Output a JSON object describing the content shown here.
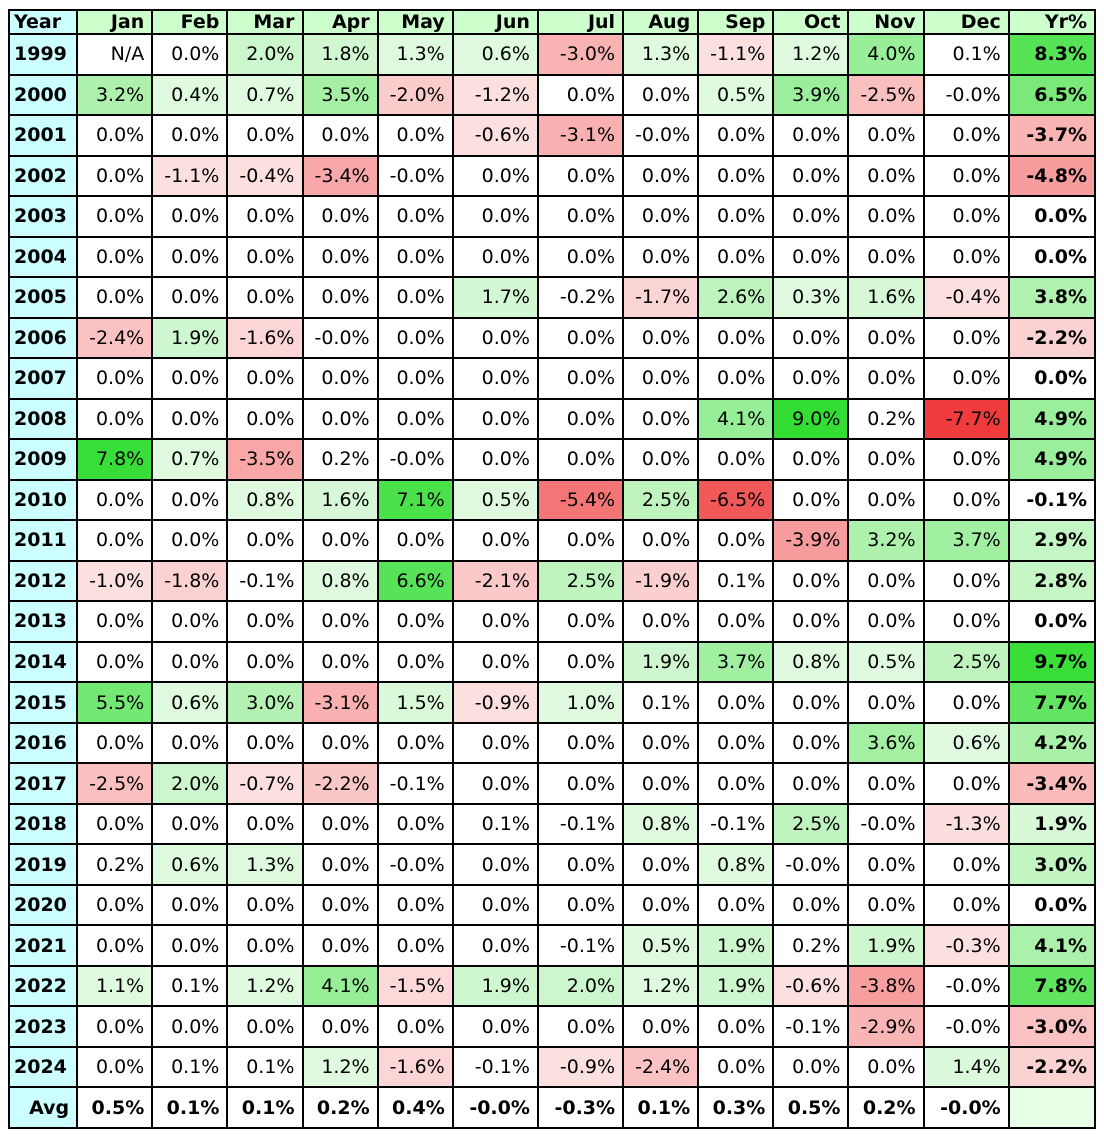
{
  "table": {
    "columns": [
      "Year",
      "Jan",
      "Feb",
      "Mar",
      "Apr",
      "May",
      "Jun",
      "Jul",
      "Aug",
      "Sep",
      "Oct",
      "Nov",
      "Dec",
      "Yr%"
    ],
    "rows": [
      {
        "year": "1999",
        "values": [
          "N/A",
          "0.0%",
          "2.0%",
          "1.8%",
          "1.3%",
          "0.6%",
          "-3.0%",
          "1.3%",
          "-1.1%",
          "1.2%",
          "4.0%",
          "0.1%",
          "8.3%"
        ]
      },
      {
        "year": "2000",
        "values": [
          "3.2%",
          "0.4%",
          "0.7%",
          "3.5%",
          "-2.0%",
          "-1.2%",
          "0.0%",
          "0.0%",
          "0.5%",
          "3.9%",
          "-2.5%",
          "-0.0%",
          "6.5%"
        ]
      },
      {
        "year": "2001",
        "values": [
          "0.0%",
          "0.0%",
          "0.0%",
          "0.0%",
          "0.0%",
          "-0.6%",
          "-3.1%",
          "-0.0%",
          "0.0%",
          "0.0%",
          "0.0%",
          "0.0%",
          "-3.7%"
        ]
      },
      {
        "year": "2002",
        "values": [
          "0.0%",
          "-1.1%",
          "-0.4%",
          "-3.4%",
          "-0.0%",
          "0.0%",
          "0.0%",
          "0.0%",
          "0.0%",
          "0.0%",
          "0.0%",
          "0.0%",
          "-4.8%"
        ]
      },
      {
        "year": "2003",
        "values": [
          "0.0%",
          "0.0%",
          "0.0%",
          "0.0%",
          "0.0%",
          "0.0%",
          "0.0%",
          "0.0%",
          "0.0%",
          "0.0%",
          "0.0%",
          "0.0%",
          "0.0%"
        ]
      },
      {
        "year": "2004",
        "values": [
          "0.0%",
          "0.0%",
          "0.0%",
          "0.0%",
          "0.0%",
          "0.0%",
          "0.0%",
          "0.0%",
          "0.0%",
          "0.0%",
          "0.0%",
          "0.0%",
          "0.0%"
        ]
      },
      {
        "year": "2005",
        "values": [
          "0.0%",
          "0.0%",
          "0.0%",
          "0.0%",
          "0.0%",
          "1.7%",
          "-0.2%",
          "-1.7%",
          "2.6%",
          "0.3%",
          "1.6%",
          "-0.4%",
          "3.8%"
        ]
      },
      {
        "year": "2006",
        "values": [
          "-2.4%",
          "1.9%",
          "-1.6%",
          "-0.0%",
          "0.0%",
          "0.0%",
          "0.0%",
          "0.0%",
          "0.0%",
          "0.0%",
          "0.0%",
          "0.0%",
          "-2.2%"
        ]
      },
      {
        "year": "2007",
        "values": [
          "0.0%",
          "0.0%",
          "0.0%",
          "0.0%",
          "0.0%",
          "0.0%",
          "0.0%",
          "0.0%",
          "0.0%",
          "0.0%",
          "0.0%",
          "0.0%",
          "0.0%"
        ]
      },
      {
        "year": "2008",
        "values": [
          "0.0%",
          "0.0%",
          "0.0%",
          "0.0%",
          "0.0%",
          "0.0%",
          "0.0%",
          "0.0%",
          "4.1%",
          "9.0%",
          "0.2%",
          "-7.7%",
          "4.9%"
        ]
      },
      {
        "year": "2009",
        "values": [
          "7.8%",
          "0.7%",
          "-3.5%",
          "0.2%",
          "-0.0%",
          "0.0%",
          "0.0%",
          "0.0%",
          "0.0%",
          "0.0%",
          "0.0%",
          "0.0%",
          "4.9%"
        ]
      },
      {
        "year": "2010",
        "values": [
          "0.0%",
          "0.0%",
          "0.8%",
          "1.6%",
          "7.1%",
          "0.5%",
          "-5.4%",
          "2.5%",
          "-6.5%",
          "0.0%",
          "0.0%",
          "0.0%",
          "-0.1%"
        ]
      },
      {
        "year": "2011",
        "values": [
          "0.0%",
          "0.0%",
          "0.0%",
          "0.0%",
          "0.0%",
          "0.0%",
          "0.0%",
          "0.0%",
          "0.0%",
          "-3.9%",
          "3.2%",
          "3.7%",
          "2.9%"
        ]
      },
      {
        "year": "2012",
        "values": [
          "-1.0%",
          "-1.8%",
          "-0.1%",
          "0.8%",
          "6.6%",
          "-2.1%",
          "2.5%",
          "-1.9%",
          "0.1%",
          "0.0%",
          "0.0%",
          "0.0%",
          "2.8%"
        ]
      },
      {
        "year": "2013",
        "values": [
          "0.0%",
          "0.0%",
          "0.0%",
          "0.0%",
          "0.0%",
          "0.0%",
          "0.0%",
          "0.0%",
          "0.0%",
          "0.0%",
          "0.0%",
          "0.0%",
          "0.0%"
        ]
      },
      {
        "year": "2014",
        "values": [
          "0.0%",
          "0.0%",
          "0.0%",
          "0.0%",
          "0.0%",
          "0.0%",
          "0.0%",
          "1.9%",
          "3.7%",
          "0.8%",
          "0.5%",
          "2.5%",
          "9.7%"
        ]
      },
      {
        "year": "2015",
        "values": [
          "5.5%",
          "0.6%",
          "3.0%",
          "-3.1%",
          "1.5%",
          "-0.9%",
          "1.0%",
          "0.1%",
          "0.0%",
          "0.0%",
          "0.0%",
          "0.0%",
          "7.7%"
        ]
      },
      {
        "year": "2016",
        "values": [
          "0.0%",
          "0.0%",
          "0.0%",
          "0.0%",
          "0.0%",
          "0.0%",
          "0.0%",
          "0.0%",
          "0.0%",
          "0.0%",
          "3.6%",
          "0.6%",
          "4.2%"
        ]
      },
      {
        "year": "2017",
        "values": [
          "-2.5%",
          "2.0%",
          "-0.7%",
          "-2.2%",
          "-0.1%",
          "0.0%",
          "0.0%",
          "0.0%",
          "0.0%",
          "0.0%",
          "0.0%",
          "0.0%",
          "-3.4%"
        ]
      },
      {
        "year": "2018",
        "values": [
          "0.0%",
          "0.0%",
          "0.0%",
          "0.0%",
          "0.0%",
          "0.1%",
          "-0.1%",
          "0.8%",
          "-0.1%",
          "2.5%",
          "-0.0%",
          "-1.3%",
          "1.9%"
        ]
      },
      {
        "year": "2019",
        "values": [
          "0.2%",
          "0.6%",
          "1.3%",
          "0.0%",
          "-0.0%",
          "0.0%",
          "0.0%",
          "0.0%",
          "0.8%",
          "-0.0%",
          "0.0%",
          "0.0%",
          "3.0%"
        ]
      },
      {
        "year": "2020",
        "values": [
          "0.0%",
          "0.0%",
          "0.0%",
          "0.0%",
          "0.0%",
          "0.0%",
          "0.0%",
          "0.0%",
          "0.0%",
          "0.0%",
          "0.0%",
          "0.0%",
          "0.0%"
        ]
      },
      {
        "year": "2021",
        "values": [
          "0.0%",
          "0.0%",
          "0.0%",
          "0.0%",
          "0.0%",
          "0.0%",
          "-0.1%",
          "0.5%",
          "1.9%",
          "0.2%",
          "1.9%",
          "-0.3%",
          "4.1%"
        ]
      },
      {
        "year": "2022",
        "values": [
          "1.1%",
          "0.1%",
          "1.2%",
          "4.1%",
          "-1.5%",
          "1.9%",
          "2.0%",
          "1.2%",
          "1.9%",
          "-0.6%",
          "-3.8%",
          "-0.0%",
          "7.8%"
        ]
      },
      {
        "year": "2023",
        "values": [
          "0.0%",
          "0.0%",
          "0.0%",
          "0.0%",
          "0.0%",
          "0.0%",
          "0.0%",
          "0.0%",
          "0.0%",
          "-0.1%",
          "-2.9%",
          "-0.0%",
          "-3.0%"
        ]
      },
      {
        "year": "2024",
        "values": [
          "0.0%",
          "0.1%",
          "0.1%",
          "1.2%",
          "-1.6%",
          "-0.1%",
          "-0.9%",
          "-2.4%",
          "0.0%",
          "0.0%",
          "0.0%",
          "1.4%",
          "-2.2%"
        ]
      }
    ],
    "avg_row": {
      "label": "Avg",
      "values": [
        "0.5%",
        "0.1%",
        "0.1%",
        "0.2%",
        "0.4%",
        "-0.0%",
        "-0.3%",
        "0.1%",
        "0.3%",
        "0.5%",
        "0.2%",
        "-0.0%",
        ""
      ]
    }
  },
  "colors": {
    "header_month_bg": "#ccffcc",
    "header_year_bg": "#ccffff",
    "neutral_bg": "#ffffff",
    "positive_max": "#33dd33",
    "negative_max": "#ee3333",
    "avg_yr_bg": "#e6ffe6"
  }
}
